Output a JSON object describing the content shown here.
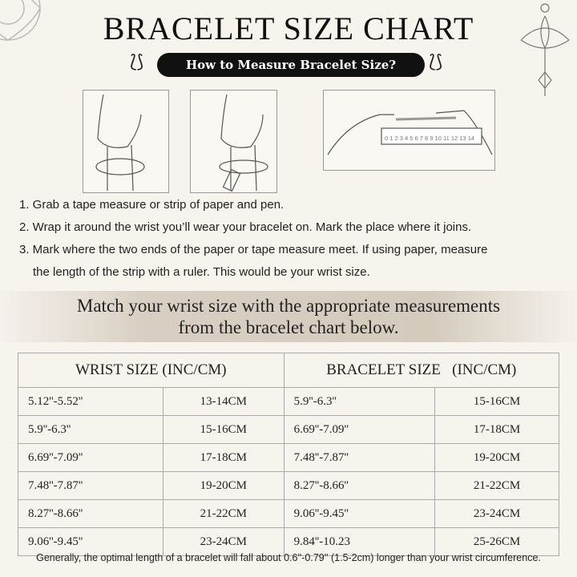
{
  "title": "BRACELET SIZE CHART",
  "subtitle": "How to Measure Bracelet Size?",
  "ruler_labels": [
    "0",
    "1",
    "2",
    "3",
    "4",
    "5",
    "6",
    "7",
    "8",
    "9",
    "10",
    "11",
    "12",
    "13",
    "14"
  ],
  "steps": [
    "1. Grab a tape measure or strip of paper and pen.",
    "2. Wrap it around the wrist you’ll wear your bracelet on. Mark the place where it joins.",
    "3. Mark where the two ends of the paper or tape measure meet. If using paper, measure",
    "the length of the strip with a ruler. This would be your wrist size."
  ],
  "banner": [
    "Match your wrist size with the appropriate measurements",
    "from the bracelet chart below."
  ],
  "table": {
    "headers": [
      "WRIST SIZE (INC/CM)",
      "BRACELET SIZE   (INC/CM)"
    ],
    "rows": [
      [
        "5.12''-5.52''",
        "13-14CM",
        "5.9''-6.3''",
        "15-16CM"
      ],
      [
        "5.9''-6.3''",
        "15-16CM",
        "6.69''-7.09''",
        "17-18CM"
      ],
      [
        "6.69''-7.09''",
        "17-18CM",
        "7.48''-7.87''",
        "19-20CM"
      ],
      [
        "7.48''-7.87''",
        "19-20CM",
        "8.27''-8.66''",
        "21-22CM"
      ],
      [
        "8.27''-8.66''",
        "21-22CM",
        "9.06''-9.45''",
        "23-24CM"
      ],
      [
        "9.06''-9.45''",
        "23-24CM",
        "9.84''-10.23",
        "25-26CM"
      ]
    ]
  },
  "footer": "Generally, the optimal length of a bracelet will fall about 0.6''-0.79'' (1.5-2cm) longer than your wrist circumference."
}
